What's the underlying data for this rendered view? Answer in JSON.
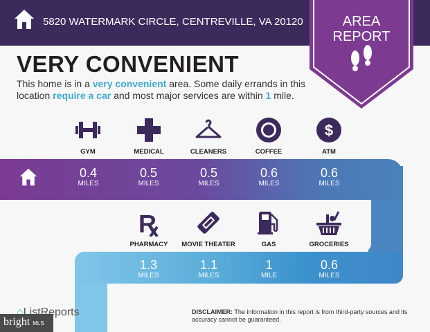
{
  "header": {
    "address": "5820 WATERMARK CIRCLE, CENTREVILLE, VA 20120",
    "badge_line1": "AREA",
    "badge_line2": "REPORT"
  },
  "headline": "VERY CONVENIENT",
  "description": {
    "p1": "This home is in a ",
    "h1": "very convenient",
    "p2": " area. Some daily errands in this location ",
    "h2": "require a car",
    "p3": " and most major services are within ",
    "h3": "1",
    "p4": " mile."
  },
  "top_row": [
    {
      "label": "GYM",
      "icon": "dumbbell-icon",
      "value": "0.4",
      "unit": "MILES"
    },
    {
      "label": "MEDICAL",
      "icon": "medical-cross-icon",
      "value": "0.5",
      "unit": "MILES"
    },
    {
      "label": "CLEANERS",
      "icon": "hanger-icon",
      "value": "0.5",
      "unit": "MILES"
    },
    {
      "label": "COFFEE",
      "icon": "starbucks-icon",
      "value": "0.6",
      "unit": "MILES"
    },
    {
      "label": "ATM",
      "icon": "dollar-icon",
      "value": "0.6",
      "unit": "MILES"
    }
  ],
  "bottom_row": [
    {
      "label": "PHARMACY",
      "icon": "rx-icon",
      "value": "1.3",
      "unit": "MILES"
    },
    {
      "label": "MOVIE THEATER",
      "icon": "ticket-icon",
      "value": "1.1",
      "unit": "MILES"
    },
    {
      "label": "GAS",
      "icon": "gas-pump-icon",
      "value": "1",
      "unit": "MILE"
    },
    {
      "label": "GROCERIES",
      "icon": "basket-icon",
      "value": "0.6",
      "unit": "MILES"
    }
  ],
  "disclaimer": {
    "bold": "DISCLAIMER:",
    "text": " The information in this report is from third-party sources and its accuracy cannot be guaranteed."
  },
  "branding": {
    "listreports": "ListReports",
    "bright": "bright",
    "mls": "MLS"
  },
  "colors": {
    "header": "#3d2a5c",
    "badge": "#7d3a91",
    "icon": "#3d2a5c",
    "accent": "#3fa9d4"
  }
}
